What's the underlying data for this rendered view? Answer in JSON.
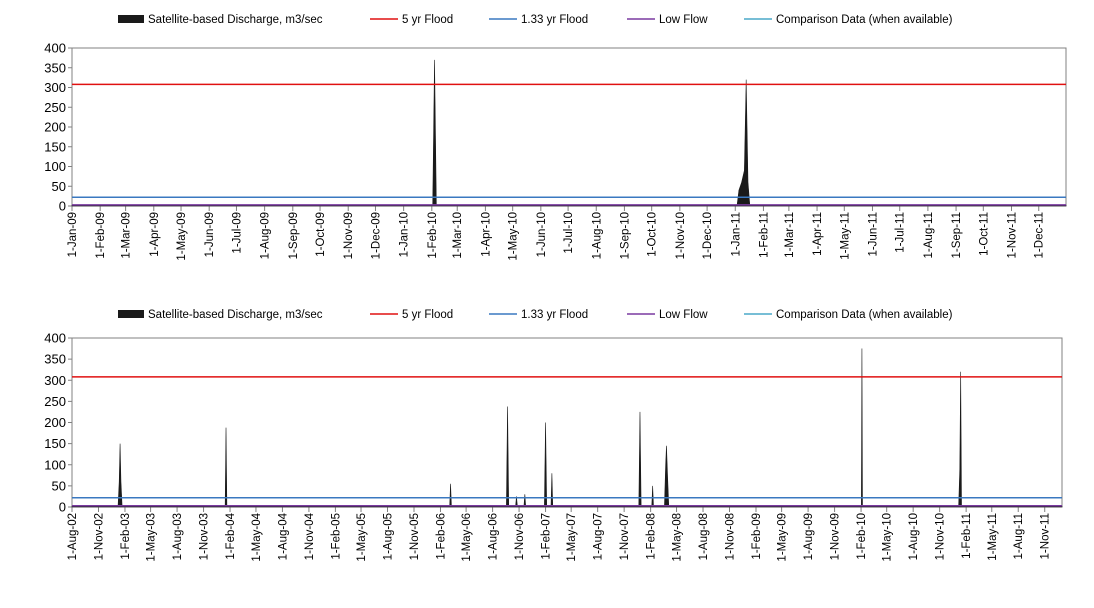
{
  "chart_data": [
    {
      "type": "area",
      "legend": {
        "placement": "top",
        "entries": [
          {
            "name": "Satellite-based Discharge, m3/sec",
            "color": "#1a1a1a",
            "symbol": "bar"
          },
          {
            "name": "5 yr Flood",
            "color": "#e01010",
            "symbol": "line"
          },
          {
            "name": "1.33 yr Flood",
            "color": "#3a78c0",
            "symbol": "line"
          },
          {
            "name": "Low Flow",
            "color": "#7a3aa0",
            "symbol": "line"
          },
          {
            "name": "Comparison Data (when available)",
            "color": "#4aa8c8",
            "symbol": "line"
          }
        ]
      },
      "ylim": [
        0,
        400
      ],
      "yticks": [
        0,
        50,
        100,
        150,
        200,
        250,
        300,
        350,
        400
      ],
      "xlim": [
        "2009-01-01",
        "2011-12-31"
      ],
      "xticks": [
        "1-Jan-09",
        "1-Feb-09",
        "1-Mar-09",
        "1-Apr-09",
        "1-May-09",
        "1-Jun-09",
        "1-Jul-09",
        "1-Aug-09",
        "1-Sep-09",
        "1-Oct-09",
        "1-Nov-09",
        "1-Dec-09",
        "1-Jan-10",
        "1-Feb-10",
        "1-Mar-10",
        "1-Apr-10",
        "1-May-10",
        "1-Jun-10",
        "1-Jul-10",
        "1-Aug-10",
        "1-Sep-10",
        "1-Oct-10",
        "1-Nov-10",
        "1-Dec-10",
        "1-Jan-11",
        "1-Feb-11",
        "1-Mar-11",
        "1-Apr-11",
        "1-May-11",
        "1-Jun-11",
        "1-Jul-11",
        "1-Aug-11",
        "1-Sep-11",
        "1-Oct-11",
        "1-Nov-11",
        "1-Dec-11"
      ],
      "xtick_dates": [
        "2009-01-01",
        "2009-02-01",
        "2009-03-01",
        "2009-04-01",
        "2009-05-01",
        "2009-06-01",
        "2009-07-01",
        "2009-08-01",
        "2009-09-01",
        "2009-10-01",
        "2009-11-01",
        "2009-12-01",
        "2010-01-01",
        "2010-02-01",
        "2010-03-01",
        "2010-04-01",
        "2010-05-01",
        "2010-06-01",
        "2010-07-01",
        "2010-08-01",
        "2010-09-01",
        "2010-10-01",
        "2010-11-01",
        "2010-12-01",
        "2011-01-01",
        "2011-02-01",
        "2011-03-01",
        "2011-04-01",
        "2011-05-01",
        "2011-06-01",
        "2011-07-01",
        "2011-08-01",
        "2011-09-01",
        "2011-10-01",
        "2011-11-01",
        "2011-12-01"
      ],
      "reference_lines": [
        {
          "name": "5 yr Flood",
          "value": 308
        },
        {
          "name": "1.33 yr Flood",
          "value": 22
        },
        {
          "name": "Low Flow",
          "value": 3
        }
      ],
      "series": [
        {
          "name": "Satellite-based Discharge, m3/sec",
          "points": [
            [
              "2009-01-01",
              2
            ],
            [
              "2010-02-02",
              2
            ],
            [
              "2010-02-04",
              370
            ],
            [
              "2010-02-06",
              2
            ],
            [
              "2011-01-03",
              2
            ],
            [
              "2011-01-05",
              40
            ],
            [
              "2011-01-08",
              60
            ],
            [
              "2011-01-11",
              90
            ],
            [
              "2011-01-13",
              320
            ],
            [
              "2011-01-15",
              60
            ],
            [
              "2011-01-17",
              2
            ],
            [
              "2011-12-31",
              2
            ]
          ]
        }
      ]
    },
    {
      "type": "area",
      "legend": {
        "placement": "top",
        "entries": [
          {
            "name": "Satellite-based Discharge, m3/sec",
            "color": "#1a1a1a",
            "symbol": "bar"
          },
          {
            "name": "5 yr Flood",
            "color": "#e01010",
            "symbol": "line"
          },
          {
            "name": "1.33 yr Flood",
            "color": "#3a78c0",
            "symbol": "line"
          },
          {
            "name": "Low Flow",
            "color": "#7a3aa0",
            "symbol": "line"
          },
          {
            "name": "Comparison Data (when available)",
            "color": "#4aa8c8",
            "symbol": "line"
          }
        ]
      },
      "ylim": [
        0,
        400
      ],
      "yticks": [
        0,
        50,
        100,
        150,
        200,
        250,
        300,
        350,
        400
      ],
      "xlim": [
        "2002-08-01",
        "2011-12-31"
      ],
      "xticks": [
        "1-Aug-02",
        "1-Nov-02",
        "1-Feb-03",
        "1-May-03",
        "1-Aug-03",
        "1-Nov-03",
        "1-Feb-04",
        "1-May-04",
        "1-Aug-04",
        "1-Nov-04",
        "1-Feb-05",
        "1-May-05",
        "1-Aug-05",
        "1-Nov-05",
        "1-Feb-06",
        "1-May-06",
        "1-Aug-06",
        "1-Nov-06",
        "1-Feb-07",
        "1-May-07",
        "1-Aug-07",
        "1-Nov-07",
        "1-Feb-08",
        "1-May-08",
        "1-Aug-08",
        "1-Nov-08",
        "1-Feb-09",
        "1-May-09",
        "1-Aug-09",
        "1-Nov-09",
        "1-Feb-10",
        "1-May-10",
        "1-Aug-10",
        "1-Nov-10",
        "1-Feb-11",
        "1-May-11",
        "1-Aug-11",
        "1-Nov-11"
      ],
      "xtick_dates": [
        "2002-08-01",
        "2002-11-01",
        "2003-02-01",
        "2003-05-01",
        "2003-08-01",
        "2003-11-01",
        "2004-02-01",
        "2004-05-01",
        "2004-08-01",
        "2004-11-01",
        "2005-02-01",
        "2005-05-01",
        "2005-08-01",
        "2005-11-01",
        "2006-02-01",
        "2006-05-01",
        "2006-08-01",
        "2006-11-01",
        "2007-02-01",
        "2007-05-01",
        "2007-08-01",
        "2007-11-01",
        "2008-02-01",
        "2008-05-01",
        "2008-08-01",
        "2008-11-01",
        "2009-02-01",
        "2009-05-01",
        "2009-08-01",
        "2009-11-01",
        "2010-02-01",
        "2010-05-01",
        "2010-08-01",
        "2010-11-01",
        "2011-02-01",
        "2011-05-01",
        "2011-08-01",
        "2011-11-01"
      ],
      "reference_lines": [
        {
          "name": "5 yr Flood",
          "value": 308
        },
        {
          "name": "1.33 yr Flood",
          "value": 22
        },
        {
          "name": "Low Flow",
          "value": 3
        }
      ],
      "series": [
        {
          "name": "Satellite-based Discharge, m3/sec",
          "points": [
            [
              "2002-08-01",
              2
            ],
            [
              "2003-01-08",
              2
            ],
            [
              "2003-01-12",
              60
            ],
            [
              "2003-01-15",
              150
            ],
            [
              "2003-01-18",
              60
            ],
            [
              "2003-01-22",
              2
            ],
            [
              "2004-01-15",
              2
            ],
            [
              "2004-01-18",
              188
            ],
            [
              "2004-01-21",
              2
            ],
            [
              "2006-03-05",
              2
            ],
            [
              "2006-03-08",
              55
            ],
            [
              "2006-03-11",
              2
            ],
            [
              "2006-09-18",
              2
            ],
            [
              "2006-09-22",
              238
            ],
            [
              "2006-09-26",
              2
            ],
            [
              "2006-10-20",
              2
            ],
            [
              "2006-10-23",
              25
            ],
            [
              "2006-10-26",
              2
            ],
            [
              "2006-11-18",
              2
            ],
            [
              "2006-11-21",
              30
            ],
            [
              "2006-11-24",
              2
            ],
            [
              "2007-01-28",
              2
            ],
            [
              "2007-02-01",
              200
            ],
            [
              "2007-02-05",
              2
            ],
            [
              "2007-02-20",
              2
            ],
            [
              "2007-02-23",
              80
            ],
            [
              "2007-02-26",
              2
            ],
            [
              "2007-12-22",
              2
            ],
            [
              "2007-12-26",
              225
            ],
            [
              "2007-12-30",
              2
            ],
            [
              "2008-02-05",
              2
            ],
            [
              "2008-02-08",
              50
            ],
            [
              "2008-02-11",
              2
            ],
            [
              "2008-03-20",
              2
            ],
            [
              "2008-03-24",
              95
            ],
            [
              "2008-03-27",
              145
            ],
            [
              "2008-03-31",
              70
            ],
            [
              "2008-04-04",
              2
            ],
            [
              "2010-02-02",
              2
            ],
            [
              "2010-02-04",
              375
            ],
            [
              "2010-02-06",
              2
            ],
            [
              "2011-01-06",
              2
            ],
            [
              "2011-01-10",
              90
            ],
            [
              "2011-01-13",
              320
            ],
            [
              "2011-01-16",
              2
            ],
            [
              "2011-12-31",
              2
            ]
          ]
        }
      ]
    }
  ]
}
